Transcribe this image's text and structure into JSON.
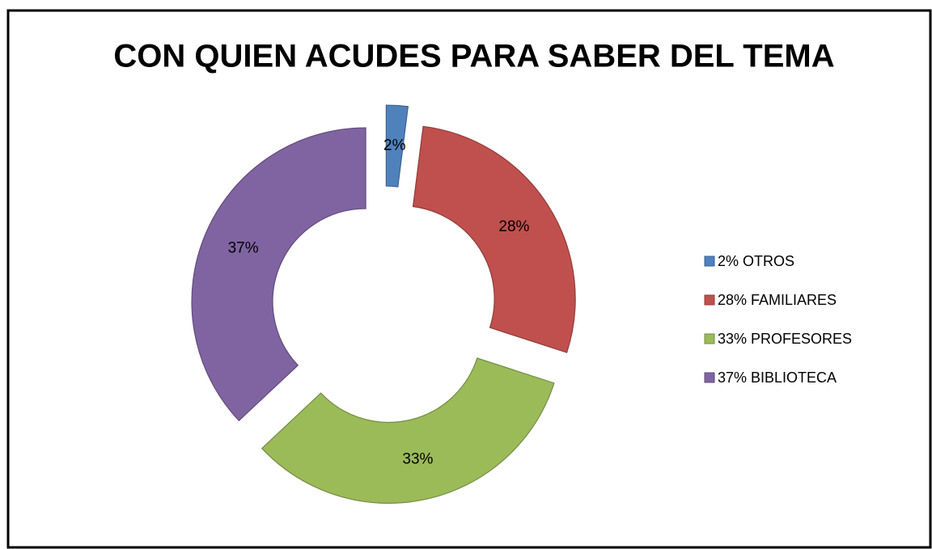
{
  "chart_data": {
    "type": "donut",
    "title": "CON QUIEN ACUDES PARA SABER DEL TEMA",
    "categories": [
      "2% OTROS",
      "28% FAMILIARES",
      "33% PROFESORES",
      "37% BIBLIOTECA"
    ],
    "values": [
      2,
      28,
      33,
      37
    ],
    "value_labels": [
      "2%",
      "28%",
      "33%",
      "37%"
    ],
    "colors": [
      "#4f81bd",
      "#c0504d",
      "#9bbb59",
      "#8064a2"
    ],
    "legend": "right"
  }
}
